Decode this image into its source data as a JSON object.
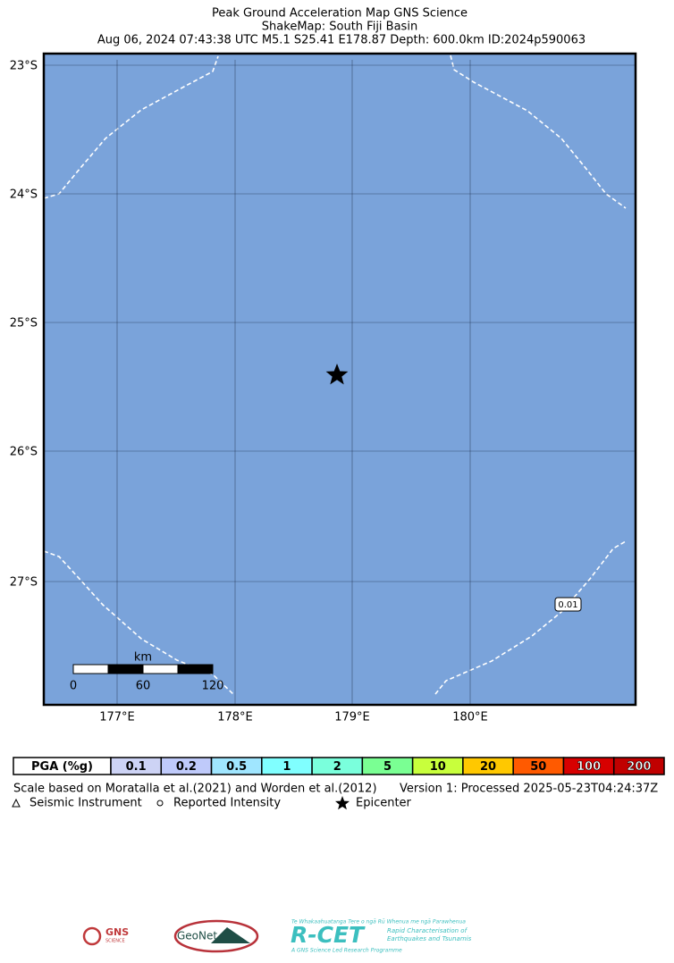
{
  "header": {
    "title": "Peak Ground Acceleration Map GNS Science",
    "subtitle": "ShakeMap: South Fiji Basin",
    "event": "Aug 06, 2024 07:43:38 UTC M5.1 S25.41 E178.87 Depth: 600.0km ID:2024p590063"
  },
  "map": {
    "lat_labels": [
      "23°S",
      "24°S",
      "25°S",
      "26°S",
      "27°S"
    ],
    "lon_labels": [
      "177°E",
      "178°E",
      "179°E",
      "180°E"
    ],
    "contour_label": "0.01",
    "scale_bar": {
      "unit": "km",
      "ticks": [
        "0",
        "60",
        "120"
      ]
    }
  },
  "colorbar": {
    "title": "PGA (%g)",
    "bins": [
      {
        "label": "0.1",
        "color": "#cdd3f5"
      },
      {
        "label": "0.2",
        "color": "#bfcafa"
      },
      {
        "label": "0.5",
        "color": "#a0e6ff"
      },
      {
        "label": "1",
        "color": "#80ffff"
      },
      {
        "label": "2",
        "color": "#7affdc"
      },
      {
        "label": "5",
        "color": "#7aff93"
      },
      {
        "label": "10",
        "color": "#c8ff3c"
      },
      {
        "label": "20",
        "color": "#ffc800"
      },
      {
        "label": "50",
        "color": "#ff5a00"
      },
      {
        "label": "100",
        "color": "#d70000"
      },
      {
        "label": "200",
        "color": "#c00000"
      }
    ]
  },
  "footer": {
    "scale_note": "Scale based on Moratalla et al.(2021) and Worden et al.(2012)",
    "version": "Version 1: Processed 2025-05-23T04:24:37Z",
    "legend": [
      "Seismic Instrument",
      "Reported Intensity",
      "Epicenter"
    ]
  },
  "logos": {
    "gns": "GNS",
    "gns_sub": "SCIENCE",
    "geonet": "GeoNet",
    "rcet_top": "Te Whakaahuatanga Tere o ngā Rū Whenua me ngā Parawhenua",
    "rcet": "R-CET",
    "rcet_desc1": "Rapid Characterisation of",
    "rcet_desc2": "Earthquakes and Tsunamis",
    "rcet_sub": "A GNS Science Led Research Programme"
  }
}
